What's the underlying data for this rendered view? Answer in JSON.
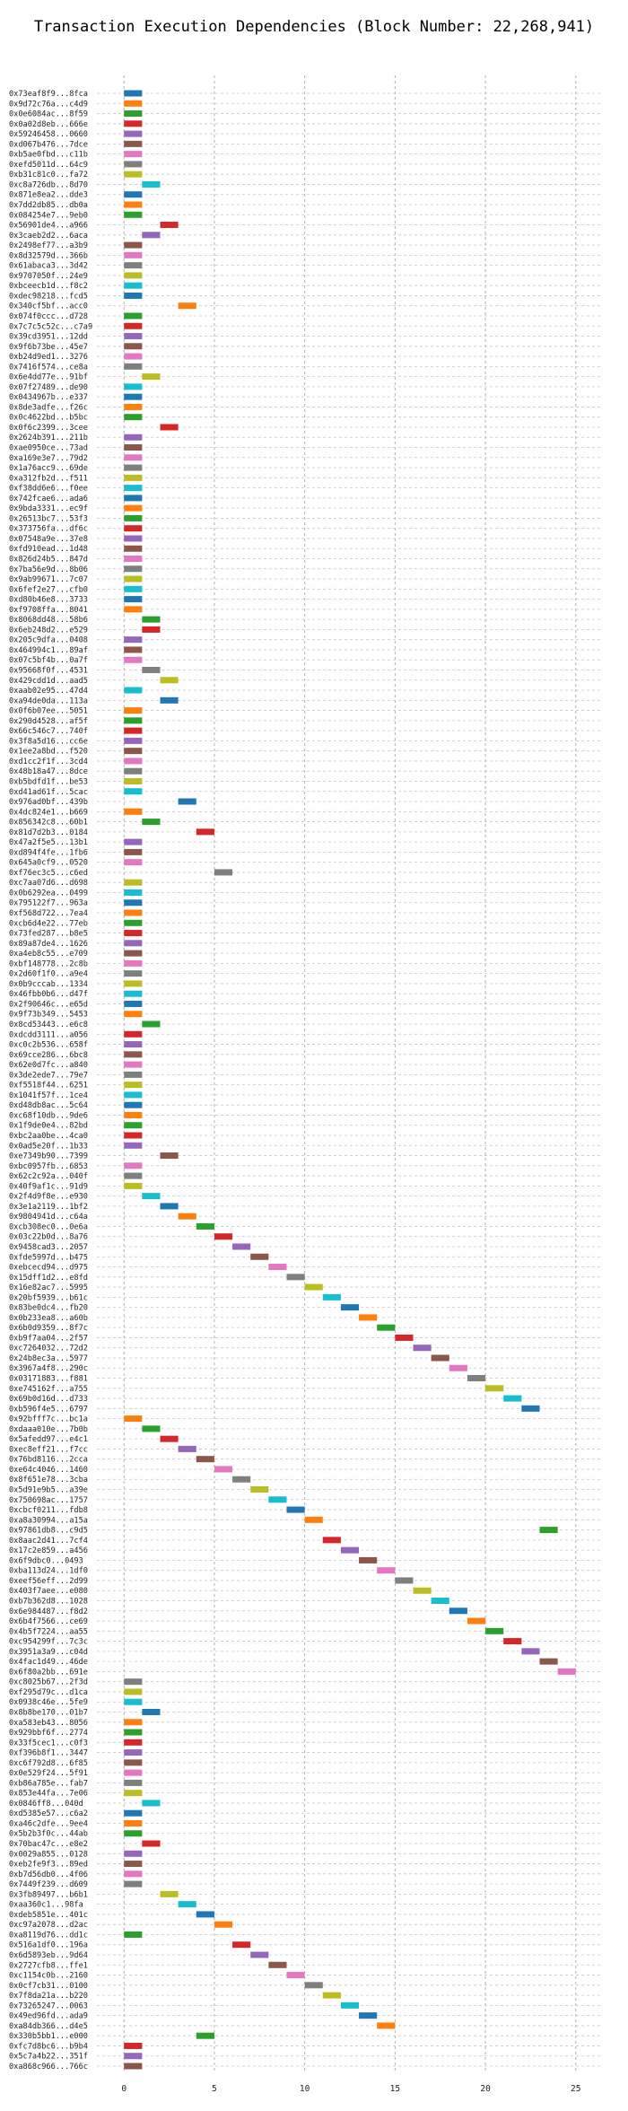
{
  "chart_data": {
    "type": "bar",
    "orientation": "horizontal",
    "title": "Transaction Execution Dependencies (Block Number: 22,268,941)",
    "xlabel": "",
    "ylabel": "",
    "xlim": [
      -1.5,
      26.5
    ],
    "xticks": [
      0,
      5,
      10,
      15,
      20,
      25
    ],
    "grid": true,
    "bar_duration": 1,
    "palette": [
      "#1f77b4",
      "#ff7f0e",
      "#2ca02c",
      "#d62728",
      "#9467bd",
      "#8c564b",
      "#e377c2",
      "#7f7f7f",
      "#bcbd22",
      "#17becf"
    ],
    "transactions": [
      {
        "label": "0x73eaf8f9...8fca",
        "start": 0
      },
      {
        "label": "0x9d72c76a...c4d9",
        "start": 0
      },
      {
        "label": "0x0e6084ac...8f59",
        "start": 0
      },
      {
        "label": "0x0a02d8eb...666e",
        "start": 0
      },
      {
        "label": "0x59246458...0660",
        "start": 0
      },
      {
        "label": "0xd067b476...7dce",
        "start": 0
      },
      {
        "label": "0xb5ae0fbd...c11b",
        "start": 0
      },
      {
        "label": "0xefd5011d...64c9",
        "start": 0
      },
      {
        "label": "0xb31c81c0...fa72",
        "start": 0
      },
      {
        "label": "0xc8a726db...8d70",
        "start": 1
      },
      {
        "label": "0x871e8ea2...dde3",
        "start": 0
      },
      {
        "label": "0x7dd2db85...db0a",
        "start": 0
      },
      {
        "label": "0x084254e7...9eb0",
        "start": 0
      },
      {
        "label": "0x56901de4...a966",
        "start": 2
      },
      {
        "label": "0x3caeb2d2...6aca",
        "start": 1
      },
      {
        "label": "0x2498ef77...a3b9",
        "start": 0
      },
      {
        "label": "0x8d32579d...366b",
        "start": 0
      },
      {
        "label": "0x61abaca3...3d42",
        "start": 0
      },
      {
        "label": "0x9707050f...24e9",
        "start": 0
      },
      {
        "label": "0xbceecb1d...f8c2",
        "start": 0
      },
      {
        "label": "0xdec98218...fcd5",
        "start": 0
      },
      {
        "label": "0x340cf5bf...acc0",
        "start": 3
      },
      {
        "label": "0x074f0ccc...d728",
        "start": 0
      },
      {
        "label": "0x7c7c5c52c...c7a9",
        "start": 0
      },
      {
        "label": "0x39cd3951...12dd",
        "start": 0
      },
      {
        "label": "0x9f6b73be...45e7",
        "start": 0
      },
      {
        "label": "0xb24d9ed1...3276",
        "start": 0
      },
      {
        "label": "0x7416f574...ce8a",
        "start": 0
      },
      {
        "label": "0x6e4dd77e...91bf",
        "start": 1
      },
      {
        "label": "0x07f27489...de90",
        "start": 0
      },
      {
        "label": "0x0434967b...e337",
        "start": 0
      },
      {
        "label": "0x8de3adfe...f26c",
        "start": 0
      },
      {
        "label": "0x0c4622bd...b5bc",
        "start": 0
      },
      {
        "label": "0x0f6c2399...3cee",
        "start": 2
      },
      {
        "label": "0x2624b391...211b",
        "start": 0
      },
      {
        "label": "0xae0950ce...73ad",
        "start": 0
      },
      {
        "label": "0xa169e3e7...79d2",
        "start": 0
      },
      {
        "label": "0x1a76acc9...69de",
        "start": 0
      },
      {
        "label": "0xa312fb2d...f511",
        "start": 0
      },
      {
        "label": "0xf38dd6e6...f0ee",
        "start": 0
      },
      {
        "label": "0x742fcae6...ada6",
        "start": 0
      },
      {
        "label": "0x9bda3331...ec9f",
        "start": 0
      },
      {
        "label": "0x26513bc7...53f3",
        "start": 0
      },
      {
        "label": "0x373756fa...df6c",
        "start": 0
      },
      {
        "label": "0x07548a9e...37e8",
        "start": 0
      },
      {
        "label": "0xfd910ead...1d48",
        "start": 0
      },
      {
        "label": "0x826d24b5...847d",
        "start": 0
      },
      {
        "label": "0x7ba56e9d...8b06",
        "start": 0
      },
      {
        "label": "0x9ab99671...7c07",
        "start": 0
      },
      {
        "label": "0x6fef2e27...cfb0",
        "start": 0
      },
      {
        "label": "0xd80b46e8...3733",
        "start": 0
      },
      {
        "label": "0xf9708ffa...8041",
        "start": 0
      },
      {
        "label": "0x8068dd48...58b6",
        "start": 1
      },
      {
        "label": "0x6eb248d2...e529",
        "start": 1
      },
      {
        "label": "0x205c9dfa...0408",
        "start": 0
      },
      {
        "label": "0x464994c1...89af",
        "start": 0
      },
      {
        "label": "0x07c5bf4b...0a7f",
        "start": 0
      },
      {
        "label": "0x95668f0f...4531",
        "start": 1
      },
      {
        "label": "0x429cdd1d...aad5",
        "start": 2
      },
      {
        "label": "0xaab02e95...47d4",
        "start": 0
      },
      {
        "label": "0xa94de0da...113a",
        "start": 2
      },
      {
        "label": "0x0f6b07ee...5051",
        "start": 0
      },
      {
        "label": "0x290d4528...af5f",
        "start": 0
      },
      {
        "label": "0x66c546c7...740f",
        "start": 0
      },
      {
        "label": "0x3f8a5d16...cc6e",
        "start": 0
      },
      {
        "label": "0x1ee2a8bd...f520",
        "start": 0
      },
      {
        "label": "0xd1cc2f1f...3cd4",
        "start": 0
      },
      {
        "label": "0x48b18a47...8dce",
        "start": 0
      },
      {
        "label": "0xb5bdfd1f...be53",
        "start": 0
      },
      {
        "label": "0xd41ad61f...5cac",
        "start": 0
      },
      {
        "label": "0x976ad0bf...439b",
        "start": 3
      },
      {
        "label": "0x4dc824e1...b669",
        "start": 0
      },
      {
        "label": "0x856342c8...60b1",
        "start": 1
      },
      {
        "label": "0x81d7d2b3...0184",
        "start": 4
      },
      {
        "label": "0x47a2f5e5...13b1",
        "start": 0
      },
      {
        "label": "0xd894f4fe...1fb6",
        "start": 0
      },
      {
        "label": "0x645a0cf9...0520",
        "start": 0
      },
      {
        "label": "0xf76ec3c5...c6ed",
        "start": 5
      },
      {
        "label": "0xc7aa07d6...d698",
        "start": 0
      },
      {
        "label": "0x0b6292ea...0499",
        "start": 0
      },
      {
        "label": "0x795122f7...963a",
        "start": 0
      },
      {
        "label": "0xf568d722...7ea4",
        "start": 0
      },
      {
        "label": "0xcb6d4e22...77eb",
        "start": 0
      },
      {
        "label": "0x73fed287...b8e5",
        "start": 0
      },
      {
        "label": "0x89a87de4...1626",
        "start": 0
      },
      {
        "label": "0xa4eb8c55...e709",
        "start": 0
      },
      {
        "label": "0xbf148778...2c8b",
        "start": 0
      },
      {
        "label": "0x2d60f1f0...a9e4",
        "start": 0
      },
      {
        "label": "0x0b9cccab...1334",
        "start": 0
      },
      {
        "label": "0x46fbb0b6...d47f",
        "start": 0
      },
      {
        "label": "0x2f90646c...e65d",
        "start": 0
      },
      {
        "label": "0x9f73b349...5453",
        "start": 0
      },
      {
        "label": "0x8cd53443...e6c8",
        "start": 1
      },
      {
        "label": "0xdcdd3111...a056",
        "start": 0
      },
      {
        "label": "0xc0c2b536...658f",
        "start": 0
      },
      {
        "label": "0x69cce286...6bc8",
        "start": 0
      },
      {
        "label": "0x62e0d7fc...a840",
        "start": 0
      },
      {
        "label": "0x3de2ede7...79e7",
        "start": 0
      },
      {
        "label": "0xf5518f44...6251",
        "start": 0
      },
      {
        "label": "0x1041f57f...1ce4",
        "start": 0
      },
      {
        "label": "0xd48db8ac...5c64",
        "start": 0
      },
      {
        "label": "0xc68f10db...9de6",
        "start": 0
      },
      {
        "label": "0x1f9de0e4...82bd",
        "start": 0
      },
      {
        "label": "0xbc2aa0be...4ca0",
        "start": 0
      },
      {
        "label": "0x0ad5e20f...1b33",
        "start": 0
      },
      {
        "label": "0xe7349b90...7399",
        "start": 2
      },
      {
        "label": "0xbc0957fb...6853",
        "start": 0
      },
      {
        "label": "0x62c2c92a...040f",
        "start": 0
      },
      {
        "label": "0x40f9af1c...91d9",
        "start": 0
      },
      {
        "label": "0x2f4d9f8e...e930",
        "start": 1
      },
      {
        "label": "0x3e1a2119...1bf2",
        "start": 2
      },
      {
        "label": "0x9804941d...c64a",
        "start": 3
      },
      {
        "label": "0xcb308ec0...0e6a",
        "start": 4
      },
      {
        "label": "0x03c22b0d...8a76",
        "start": 5
      },
      {
        "label": "0x9458cad3...2057",
        "start": 6
      },
      {
        "label": "0xfde5997d...b475",
        "start": 7
      },
      {
        "label": "0xebcecd94...d975",
        "start": 8
      },
      {
        "label": "0x15dff1d2...e8fd",
        "start": 9
      },
      {
        "label": "0x16e82ac7...5995",
        "start": 10
      },
      {
        "label": "0x20bf5939...b61c",
        "start": 11
      },
      {
        "label": "0x83be0dc4...fb20",
        "start": 12
      },
      {
        "label": "0x0b233ea8...a60b",
        "start": 13
      },
      {
        "label": "0x6b0d9359...8f7c",
        "start": 14
      },
      {
        "label": "0xb9f7aa04...2f57",
        "start": 15
      },
      {
        "label": "0xc7264032...72d2",
        "start": 16
      },
      {
        "label": "0x24b8ec3a...5977",
        "start": 17
      },
      {
        "label": "0x3967a4f8...290c",
        "start": 18
      },
      {
        "label": "0x03171883...f881",
        "start": 19
      },
      {
        "label": "0xe745162f...a755",
        "start": 20
      },
      {
        "label": "0x69b0d16d...d733",
        "start": 21
      },
      {
        "label": "0xb596f4e5...6797",
        "start": 22
      },
      {
        "label": "0x92bfff7c...bc1a",
        "start": 0
      },
      {
        "label": "0xdaaa010e...7b0b",
        "start": 1
      },
      {
        "label": "0x5afedd97...e4c1",
        "start": 2
      },
      {
        "label": "0xec8eff21...f7cc",
        "start": 3
      },
      {
        "label": "0x76bd8116...2cca",
        "start": 4
      },
      {
        "label": "0xe64c4046...1460",
        "start": 5
      },
      {
        "label": "0x8f651e78...3cba",
        "start": 6
      },
      {
        "label": "0x5d91e9b5...a39e",
        "start": 7
      },
      {
        "label": "0x750698ac...1757",
        "start": 8
      },
      {
        "label": "0xcbcf0211...fdb8",
        "start": 9
      },
      {
        "label": "0xa8a30994...a15a",
        "start": 10
      },
      {
        "label": "0x97861db8...c9d5",
        "start": 23
      },
      {
        "label": "0x8aac2d41...7cf4",
        "start": 11
      },
      {
        "label": "0x17c2e859...a456",
        "start": 12
      },
      {
        "label": "0x6f9dbc0...0493",
        "start": 13
      },
      {
        "label": "0xba113d24...1df0",
        "start": 14
      },
      {
        "label": "0xeef56eff...2d99",
        "start": 15
      },
      {
        "label": "0x403f7aee...e080",
        "start": 16
      },
      {
        "label": "0xb7b362d8...1028",
        "start": 17
      },
      {
        "label": "0x6e984487...f8d2",
        "start": 18
      },
      {
        "label": "0x6b4f7566...ce69",
        "start": 19
      },
      {
        "label": "0x4b5f7224...aa55",
        "start": 20
      },
      {
        "label": "0xc954299f...7c3c",
        "start": 21
      },
      {
        "label": "0x3951a3a9...c04d",
        "start": 22
      },
      {
        "label": "0x4fac1d49...46de",
        "start": 23
      },
      {
        "label": "0x6f80a2bb...691e",
        "start": 24
      },
      {
        "label": "0xc8025b67...2f3d",
        "start": 0
      },
      {
        "label": "0xf295d79c...d1ca",
        "start": 0
      },
      {
        "label": "0x0938c46e...5fe9",
        "start": 0
      },
      {
        "label": "0x8b8be170...01b7",
        "start": 1
      },
      {
        "label": "0xa583eb43...8056",
        "start": 0
      },
      {
        "label": "0x929bbf6f...2774",
        "start": 0
      },
      {
        "label": "0x33f5cec1...c0f3",
        "start": 0
      },
      {
        "label": "0xf396b8f1...3447",
        "start": 0
      },
      {
        "label": "0xc6f792d8...6f85",
        "start": 0
      },
      {
        "label": "0x0e529f24...5f91",
        "start": 0
      },
      {
        "label": "0xb86a785e...fab7",
        "start": 0
      },
      {
        "label": "0x853e44fa...7e06",
        "start": 0
      },
      {
        "label": "0x0846ff8...040d",
        "start": 1
      },
      {
        "label": "0xd5385e57...c6a2",
        "start": 0
      },
      {
        "label": "0xa46c2dfe...9ee4",
        "start": 0
      },
      {
        "label": "0x5b2b3f0c...44ab",
        "start": 0
      },
      {
        "label": "0x70bac47c...e8e2",
        "start": 1
      },
      {
        "label": "0x0029a855...0128",
        "start": 0
      },
      {
        "label": "0xeb2fe9f3...89ed",
        "start": 0
      },
      {
        "label": "0xb7d56db0...4f06",
        "start": 0
      },
      {
        "label": "0x7449f239...d609",
        "start": 0
      },
      {
        "label": "0x3fb89497...b6b1",
        "start": 2
      },
      {
        "label": "0xaa360c1...98fa",
        "start": 3
      },
      {
        "label": "0xdeb5851e...401c",
        "start": 4
      },
      {
        "label": "0xc97a2078...d2ac",
        "start": 5
      },
      {
        "label": "0xa8119d76...dd1c",
        "start": 0
      },
      {
        "label": "0x516a1df0...196a",
        "start": 6
      },
      {
        "label": "0x6d5893eb...9d64",
        "start": 7
      },
      {
        "label": "0x2727cfb8...ffe1",
        "start": 8
      },
      {
        "label": "0xc1154c0b...2160",
        "start": 9
      },
      {
        "label": "0x0cf7cb31...0100",
        "start": 10
      },
      {
        "label": "0x7f8da21a...b220",
        "start": 11
      },
      {
        "label": "0x73265247...0063",
        "start": 12
      },
      {
        "label": "0x49ed96fd...ada9",
        "start": 13
      },
      {
        "label": "0xa84db366...d4e5",
        "start": 14
      },
      {
        "label": "0x330b5bb1...e000",
        "start": 4
      },
      {
        "label": "0xfc7d8bc6...b9b4",
        "start": 0
      },
      {
        "label": "0x5c7a4b22...351f",
        "start": 0
      },
      {
        "label": "0xa868c966...766c",
        "start": 0
      }
    ]
  }
}
